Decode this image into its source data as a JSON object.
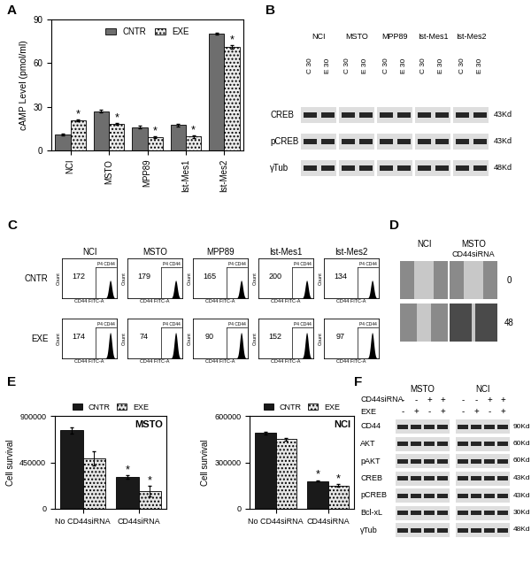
{
  "panel_labels": [
    "A",
    "B",
    "C",
    "D",
    "E",
    "F"
  ],
  "chart_data": [
    {
      "type": "bar",
      "y_label": "cAMP Level (pmol/ml)",
      "categories": [
        "NCI",
        "MSTO",
        "MPP89",
        "Ist-Mes1",
        "Ist-Mes2"
      ],
      "series": [
        {
          "name": "CNTR",
          "color": "#6e6e6e",
          "values": [
            11,
            27,
            16,
            17.5,
            80
          ],
          "errors": [
            0.8,
            0.7,
            1,
            1,
            0.6
          ]
        },
        {
          "name": "EXE",
          "color": "#ececec",
          "values": [
            20.5,
            18,
            9,
            9.5,
            71
          ],
          "errors": [
            0.7,
            0.6,
            0.6,
            0.8,
            1.2
          ],
          "significance_marks": [
            "*",
            "*",
            "*",
            "*",
            "*"
          ]
        }
      ],
      "ylim": [
        0,
        90
      ],
      "yticks": [
        0,
        30,
        60,
        90
      ],
      "legend": "upper center"
    },
    {
      "type": "bar",
      "title": "MSTO",
      "y_label": "Cell survival",
      "categories": [
        "No CD44siRNA",
        "CD44siRNA"
      ],
      "series": [
        {
          "name": "CNTR",
          "color": "#1a1a1a",
          "values": [
            760000,
            310000
          ],
          "errors": [
            30000,
            15000
          ],
          "significance_marks": [
            null,
            "*"
          ]
        },
        {
          "name": "EXE",
          "color": "#e6e6e6",
          "values": [
            490000,
            170000
          ],
          "errors": [
            70000,
            50000
          ],
          "significance_marks": [
            null,
            "*"
          ]
        }
      ],
      "ylim": [
        0,
        900000
      ],
      "yticks": [
        0,
        450000,
        900000
      ],
      "legend": "top"
    },
    {
      "type": "bar",
      "title": "NCI",
      "y_label": "Cell survival",
      "categories": [
        "No CD44siRNA",
        "CD44siRNA"
      ],
      "series": [
        {
          "name": "CNTR",
          "color": "#1a1a1a",
          "values": [
            490000,
            180000
          ],
          "errors": [
            10000,
            5000
          ],
          "significance_marks": [
            null,
            "*"
          ]
        },
        {
          "name": "EXE",
          "color": "#e6e6e6",
          "values": [
            450000,
            150000
          ],
          "errors": [
            10000,
            8000
          ],
          "significance_marks": [
            null,
            "*"
          ]
        }
      ],
      "ylim": [
        0,
        600000
      ],
      "yticks": [
        0,
        300000,
        600000
      ],
      "legend": "top"
    }
  ],
  "blot_B": {
    "groups": [
      "NCI",
      "MSTO",
      "MPP89",
      "Ist-Mes1",
      "Ist-Mes2"
    ],
    "lanes": [
      "C 30",
      "E 30"
    ],
    "rows": [
      {
        "label": "CREB",
        "size": "43Kd"
      },
      {
        "label": "pCREB",
        "size": "43Kd"
      },
      {
        "label": "γTub",
        "size": "48Kd"
      }
    ]
  },
  "flow_C": {
    "columns": [
      "NCI",
      "MSTO",
      "MPP89",
      "Ist-Mes1",
      "Ist-Mes2"
    ],
    "rows": [
      {
        "label": "CNTR",
        "values": [
          172,
          179,
          165,
          200,
          134
        ]
      },
      {
        "label": "EXE",
        "values": [
          174,
          74,
          90,
          152,
          97
        ]
      }
    ],
    "gate_label": "P4 CD44",
    "x_label": "CD44 FITC-A",
    "y_label": "Count"
  },
  "images_D": {
    "columns": [
      "NCI",
      "MSTO"
    ],
    "subtitle": "CD44siRNA",
    "rows": [
      0,
      48
    ]
  },
  "blot_F": {
    "groups": [
      "MSTO",
      "NCI"
    ],
    "conditions": [
      {
        "label": "CD44siRNA",
        "signs": [
          "-",
          "-",
          "+",
          "+"
        ]
      },
      {
        "label": "EXE",
        "signs": [
          "-",
          "+",
          "-",
          "+"
        ]
      }
    ],
    "rows": [
      {
        "label": "CD44",
        "size": "90Kd"
      },
      {
        "label": "AKT",
        "size": "60Kd"
      },
      {
        "label": "pAKT",
        "size": "60Kd"
      },
      {
        "label": "CREB",
        "size": "43Kd"
      },
      {
        "label": "pCREB",
        "size": "43Kd"
      },
      {
        "label": "Bcl-xL",
        "size": "30Kd"
      },
      {
        "label": "γTub",
        "size": "48Kd"
      }
    ]
  }
}
